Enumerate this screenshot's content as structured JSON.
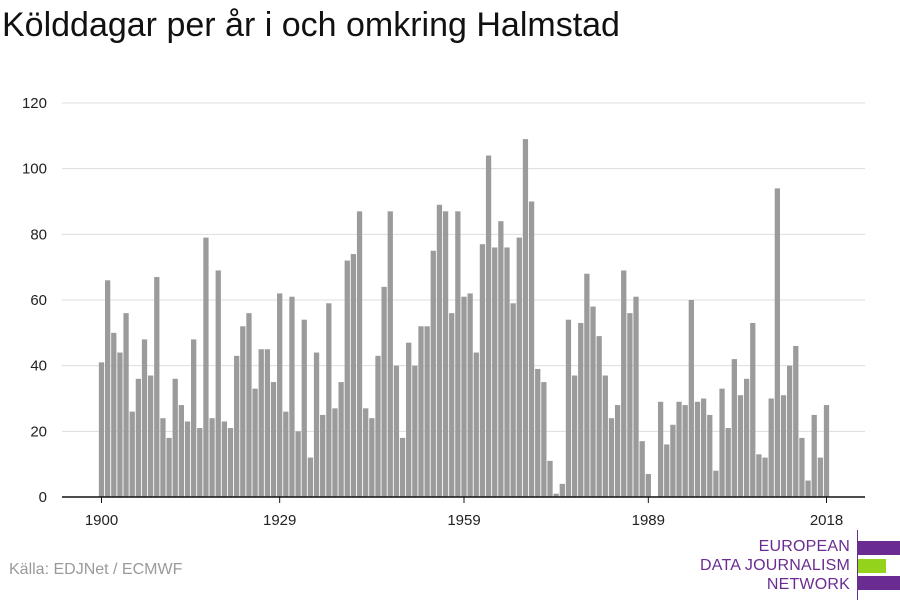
{
  "chart_data": {
    "type": "bar",
    "title": "Kölddagar per år i och omkring Halmstad",
    "xlabel": "",
    "ylabel": "",
    "x_start": 1900,
    "x_end": 2018,
    "ylim": [
      0,
      120
    ],
    "y_ticks": [
      0,
      20,
      40,
      60,
      80,
      100,
      120
    ],
    "x_tick_labels": [
      "1900",
      "1929",
      "1959",
      "1989",
      "2018"
    ],
    "grid": true,
    "values": [
      41,
      66,
      50,
      44,
      56,
      26,
      36,
      48,
      37,
      67,
      24,
      18,
      36,
      28,
      23,
      48,
      21,
      79,
      24,
      69,
      23,
      21,
      43,
      52,
      56,
      33,
      45,
      45,
      35,
      62,
      26,
      61,
      20,
      54,
      12,
      44,
      25,
      59,
      27,
      35,
      72,
      74,
      87,
      27,
      24,
      43,
      64,
      87,
      40,
      18,
      47,
      40,
      52,
      52,
      75,
      89,
      87,
      56,
      87,
      61,
      62,
      44,
      77,
      104,
      76,
      84,
      76,
      59,
      79,
      109,
      90,
      39,
      35,
      11,
      1,
      4,
      54,
      37,
      53,
      68,
      58,
      49,
      37,
      24,
      28,
      69,
      56,
      61,
      17,
      7,
      0,
      29,
      16,
      22,
      29,
      28,
      60,
      29,
      30,
      25,
      8,
      33,
      21,
      42,
      31,
      36,
      53,
      13,
      12,
      30,
      94,
      31,
      40,
      46,
      18,
      5,
      25,
      12,
      28
    ],
    "colors": {
      "bar": "#9b9b9b",
      "grid": "#dddddd",
      "axis": "#111111"
    }
  },
  "source": "Källa: EDJNet / ECMWF",
  "logo": {
    "line1": "EUROPEAN",
    "line2": "DATA JOURNALISM",
    "line3": "NETWORK",
    "colors": {
      "purple": "#6b2c91",
      "green": "#94d31b"
    }
  }
}
